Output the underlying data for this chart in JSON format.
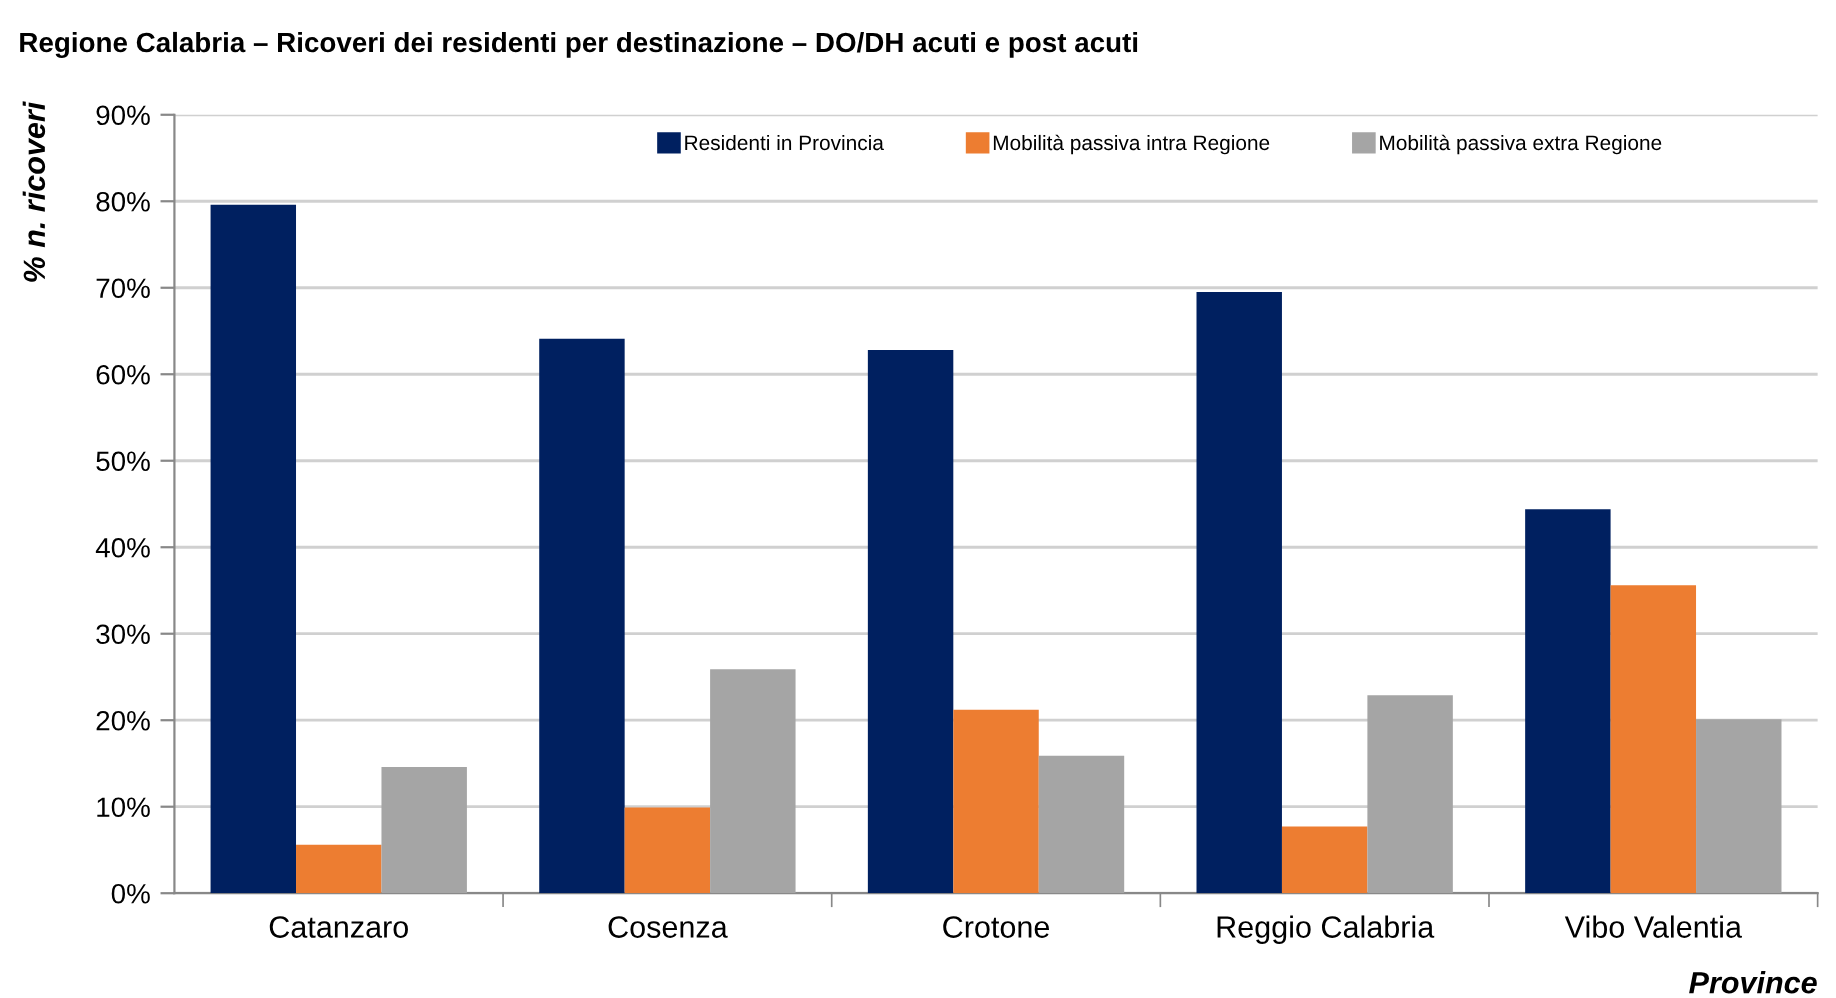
{
  "chart_data": {
    "type": "bar",
    "title": "Regione Calabria – Ricoveri dei residenti per destinazione – DO/DH acuti e post acuti",
    "xlabel": "Province",
    "ylabel": "% n. ricoveri",
    "categories": [
      "Catanzaro",
      "Cosenza",
      "Crotone",
      "Reggio Calabria",
      "Vibo Valentia"
    ],
    "series": [
      {
        "name": "Residenti in Provincia",
        "color": "#002060",
        "values": [
          79.6,
          64.1,
          62.8,
          69.5,
          44.4
        ]
      },
      {
        "name": "Mobilità passiva intra Regione",
        "color": "#ed7d31",
        "values": [
          5.6,
          9.9,
          21.2,
          7.7,
          35.6
        ]
      },
      {
        "name": "Mobilità passiva extra Regione",
        "color": "#a5a5a5",
        "values": [
          14.6,
          25.9,
          15.9,
          22.9,
          20.1
        ]
      }
    ],
    "ylim": [
      0,
      90
    ],
    "yticks": [
      {
        "value": 0,
        "label": "0%"
      },
      {
        "value": 10,
        "label": "10%"
      },
      {
        "value": 20,
        "label": "20%"
      },
      {
        "value": 30,
        "label": "30%"
      },
      {
        "value": 40,
        "label": "40%"
      },
      {
        "value": 50,
        "label": "50%"
      },
      {
        "value": 60,
        "label": "60%"
      },
      {
        "value": 70,
        "label": "70%"
      },
      {
        "value": 80,
        "label": "80%"
      },
      {
        "value": 90,
        "label": "90%"
      }
    ],
    "grid": "y",
    "legend": "top"
  }
}
